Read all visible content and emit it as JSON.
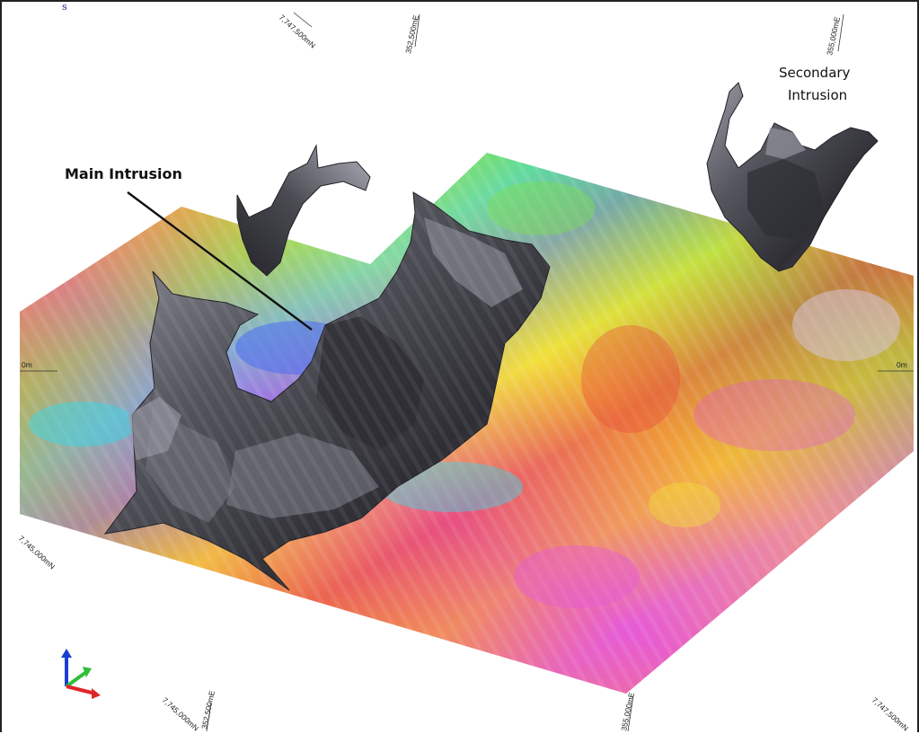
{
  "corner_mark": "s",
  "callouts": {
    "main": "Main Intrusion",
    "secondary_line1": "Secondary",
    "secondary_line2": "Intrusion"
  },
  "grid_labels": {
    "north_top": "7,747,500mN",
    "east_top_1": "352,500mE",
    "east_top_2": "355,000mE",
    "elev_left": "0m",
    "elev_right": "0m",
    "north_left": "7,745,000mN",
    "north_bottom": "7,745,000mN",
    "east_bottom_1": "352,500mE",
    "east_bottom_2": "355,000mE",
    "north_bottom_right": "7,747,500mN"
  },
  "axis_triad": {
    "z_color": "#1a3fd0",
    "y_color": "#2fbf3a",
    "x_color": "#e0262a"
  },
  "colors": {
    "intrusion": "#4a4a52",
    "intrusion_highlight": "#9a9aa6",
    "magenta": "#e65ad8",
    "red": "#e8443c",
    "orange": "#f39a3a",
    "yellow": "#f2e13a",
    "green": "#7ee04a",
    "cyan": "#3cd6e6",
    "blue": "#4a6ef0"
  }
}
